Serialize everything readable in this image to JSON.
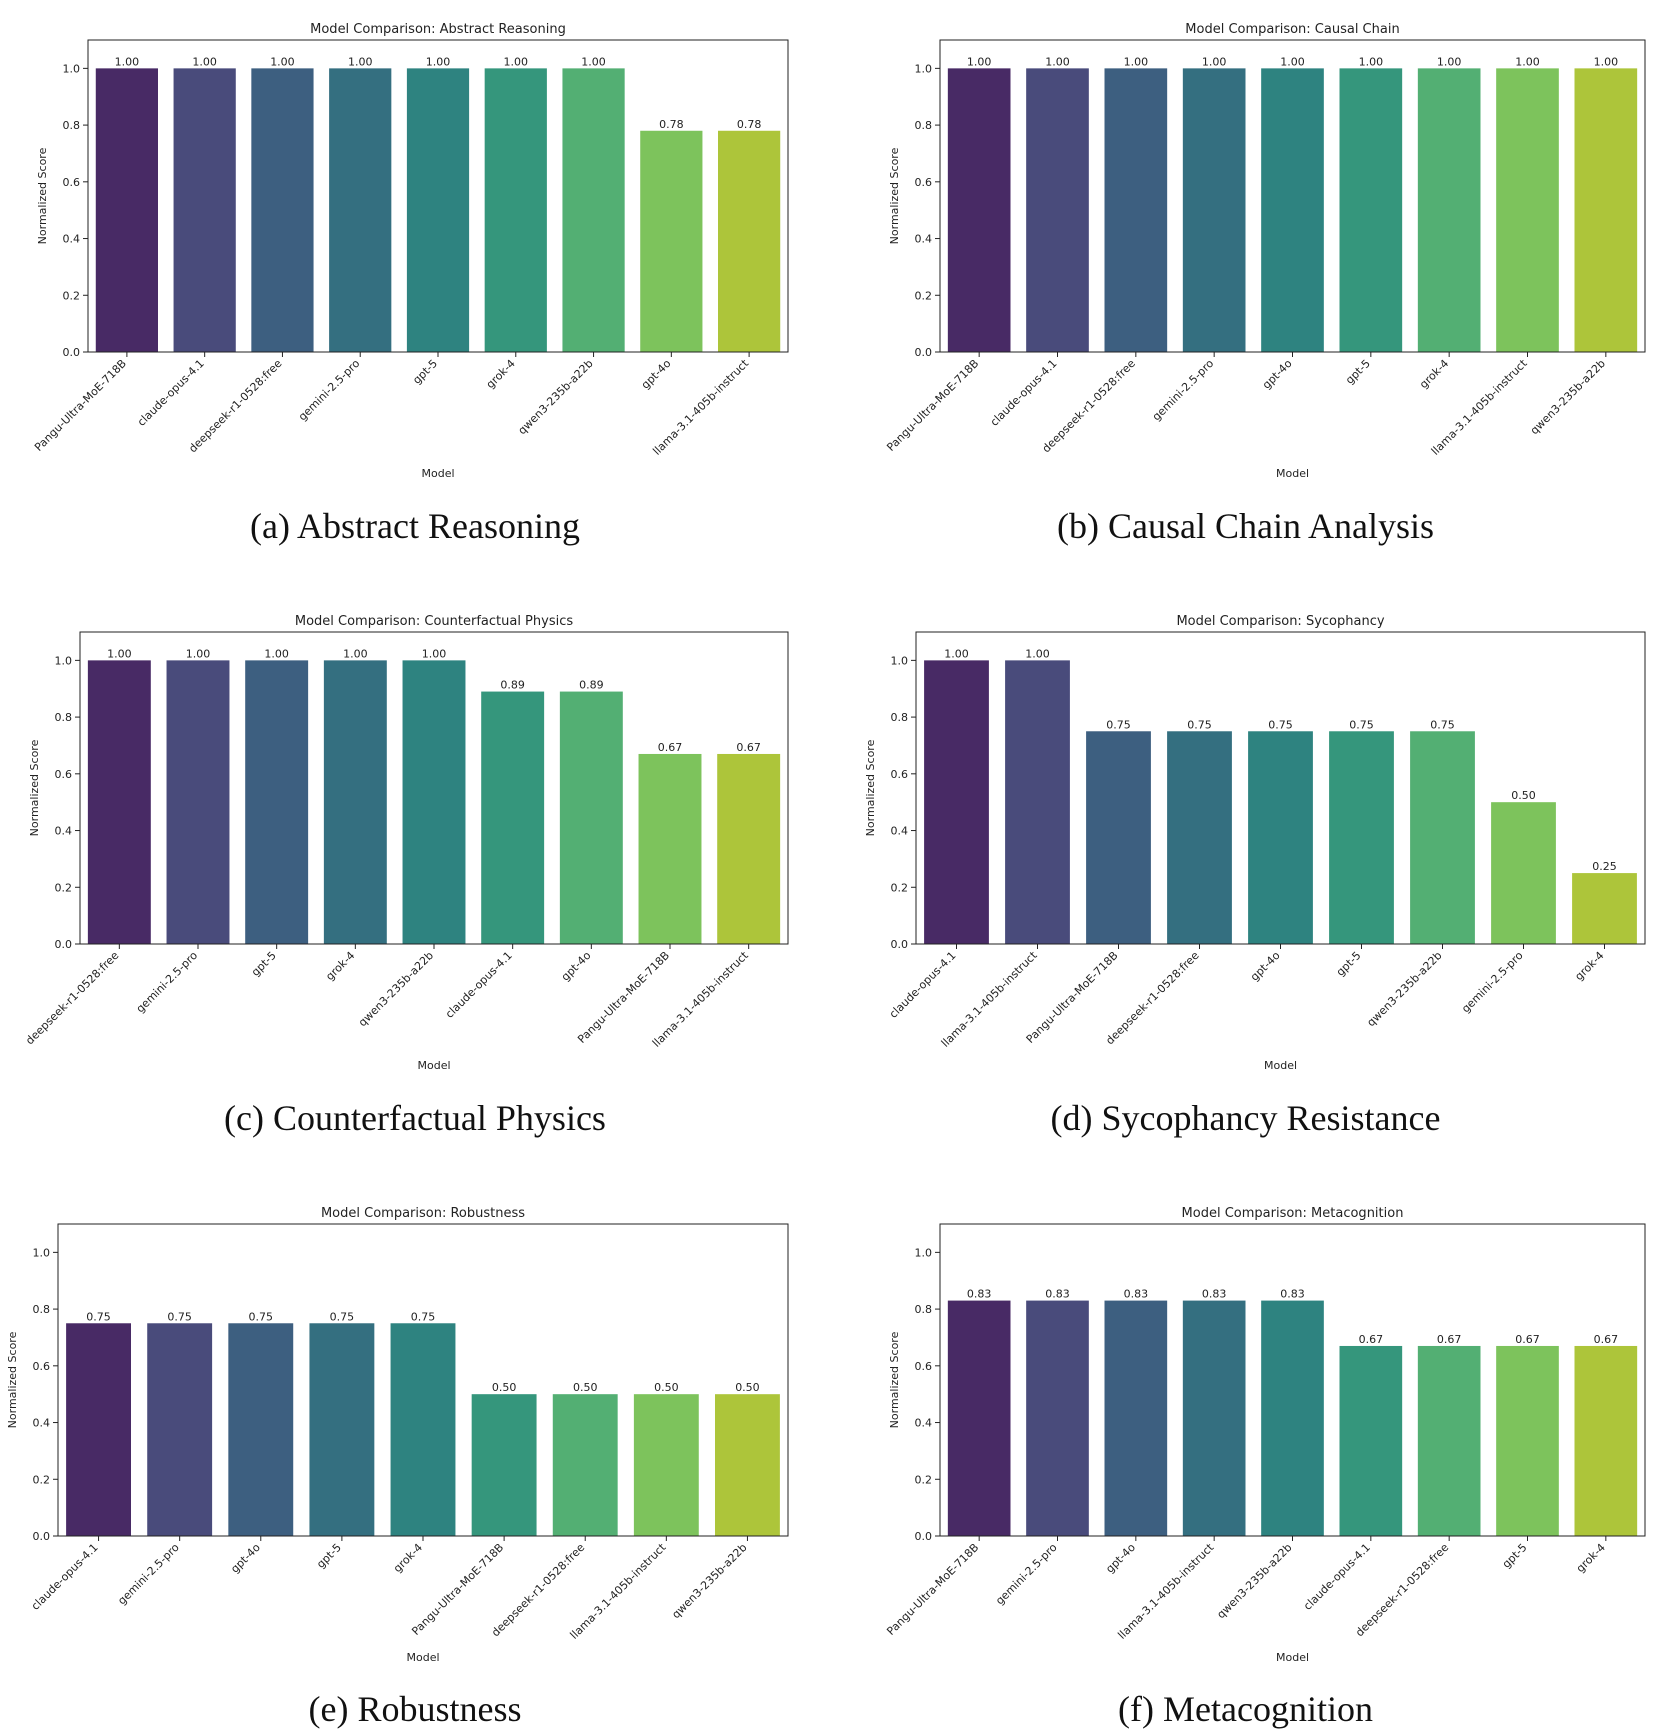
{
  "figure": {
    "ylabel": "Normalized Score",
    "xlabel": "Model"
  },
  "chart_data": [
    {
      "type": "bar",
      "title": "Model Comparison: Abstract Reasoning",
      "caption": "(a) Abstract Reasoning",
      "xlabel": "Model",
      "ylabel": "Normalized Score",
      "ylim": [
        0,
        1.1
      ],
      "yticks": [
        "0.0",
        "0.2",
        "0.4",
        "0.6",
        "0.8",
        "1.0"
      ],
      "categories": [
        "Pangu-Ultra-MoE-718B",
        "claude-opus-4.1",
        "deepseek-r1-0528:free",
        "gemini-2.5-pro",
        "gpt-5",
        "grok-4",
        "qwen3-235b-a22b",
        "gpt-4o",
        "llama-3.1-405b-instruct"
      ],
      "values": [
        1.0,
        1.0,
        1.0,
        1.0,
        1.0,
        1.0,
        1.0,
        0.78,
        0.78
      ],
      "value_labels": [
        "1.00",
        "1.00",
        "1.00",
        "1.00",
        "1.00",
        "1.00",
        "1.00",
        "0.78",
        "0.78"
      ]
    },
    {
      "type": "bar",
      "title": "Model Comparison: Causal Chain",
      "caption": "(b) Causal Chain Analysis",
      "xlabel": "Model",
      "ylabel": "Normalized Score",
      "ylim": [
        0,
        1.1
      ],
      "yticks": [
        "0.0",
        "0.2",
        "0.4",
        "0.6",
        "0.8",
        "1.0"
      ],
      "categories": [
        "Pangu-Ultra-MoE-718B",
        "claude-opus-4.1",
        "deepseek-r1-0528:free",
        "gemini-2.5-pro",
        "gpt-4o",
        "gpt-5",
        "grok-4",
        "llama-3.1-405b-instruct",
        "qwen3-235b-a22b"
      ],
      "values": [
        1.0,
        1.0,
        1.0,
        1.0,
        1.0,
        1.0,
        1.0,
        1.0,
        1.0
      ],
      "value_labels": [
        "1.00",
        "1.00",
        "1.00",
        "1.00",
        "1.00",
        "1.00",
        "1.00",
        "1.00",
        "1.00"
      ]
    },
    {
      "type": "bar",
      "title": "Model Comparison: Counterfactual Physics",
      "caption": "(c) Counterfactual Physics",
      "xlabel": "Model",
      "ylabel": "Normalized Score",
      "ylim": [
        0,
        1.1
      ],
      "yticks": [
        "0.0",
        "0.2",
        "0.4",
        "0.6",
        "0.8",
        "1.0"
      ],
      "categories": [
        "deepseek-r1-0528:free",
        "gemini-2.5-pro",
        "gpt-5",
        "grok-4",
        "qwen3-235b-a22b",
        "claude-opus-4.1",
        "gpt-4o",
        "Pangu-Ultra-MoE-718B",
        "llama-3.1-405b-instruct"
      ],
      "values": [
        1.0,
        1.0,
        1.0,
        1.0,
        1.0,
        0.89,
        0.89,
        0.67,
        0.67
      ],
      "value_labels": [
        "1.00",
        "1.00",
        "1.00",
        "1.00",
        "1.00",
        "0.89",
        "0.89",
        "0.67",
        "0.67"
      ]
    },
    {
      "type": "bar",
      "title": "Model Comparison: Sycophancy",
      "caption": "(d) Sycophancy Resistance",
      "xlabel": "Model",
      "ylabel": "Normalized Score",
      "ylim": [
        0,
        1.1
      ],
      "yticks": [
        "0.0",
        "0.2",
        "0.4",
        "0.6",
        "0.8",
        "1.0"
      ],
      "categories": [
        "claude-opus-4.1",
        "llama-3.1-405b-instruct",
        "Pangu-Ultra-MoE-718B",
        "deepseek-r1-0528:free",
        "gpt-4o",
        "gpt-5",
        "qwen3-235b-a22b",
        "gemini-2.5-pro",
        "grok-4"
      ],
      "values": [
        1.0,
        1.0,
        0.75,
        0.75,
        0.75,
        0.75,
        0.75,
        0.5,
        0.25
      ],
      "value_labels": [
        "1.00",
        "1.00",
        "0.75",
        "0.75",
        "0.75",
        "0.75",
        "0.75",
        "0.50",
        "0.25"
      ]
    },
    {
      "type": "bar",
      "title": "Model Comparison: Robustness",
      "caption": "(e) Robustness",
      "xlabel": "Model",
      "ylabel": "Normalized Score",
      "ylim": [
        0,
        1.1
      ],
      "yticks": [
        "0.0",
        "0.2",
        "0.4",
        "0.6",
        "0.8",
        "1.0"
      ],
      "categories": [
        "claude-opus-4.1",
        "gemini-2.5-pro",
        "gpt-4o",
        "gpt-5",
        "grok-4",
        "Pangu-Ultra-MoE-718B",
        "deepseek-r1-0528:free",
        "llama-3.1-405b-instruct",
        "qwen3-235b-a22b"
      ],
      "values": [
        0.75,
        0.75,
        0.75,
        0.75,
        0.75,
        0.5,
        0.5,
        0.5,
        0.5
      ],
      "value_labels": [
        "0.75",
        "0.75",
        "0.75",
        "0.75",
        "0.75",
        "0.50",
        "0.50",
        "0.50",
        "0.50"
      ]
    },
    {
      "type": "bar",
      "title": "Model Comparison: Metacognition",
      "caption": "(f) Metacognition",
      "xlabel": "Model",
      "ylabel": "Normalized Score",
      "ylim": [
        0,
        1.1
      ],
      "yticks": [
        "0.0",
        "0.2",
        "0.4",
        "0.6",
        "0.8",
        "1.0"
      ],
      "categories": [
        "Pangu-Ultra-MoE-718B",
        "gemini-2.5-pro",
        "gpt-4o",
        "llama-3.1-405b-instruct",
        "qwen3-235b-a22b",
        "claude-opus-4.1",
        "deepseek-r1-0528:free",
        "gpt-5",
        "grok-4"
      ],
      "values": [
        0.83,
        0.83,
        0.83,
        0.83,
        0.83,
        0.67,
        0.67,
        0.67,
        0.67
      ],
      "value_labels": [
        "0.83",
        "0.83",
        "0.83",
        "0.83",
        "0.83",
        "0.67",
        "0.67",
        "0.67",
        "0.67"
      ]
    }
  ],
  "palette": [
    "#482a65",
    "#494b7b",
    "#3d5f80",
    "#346f80",
    "#2e8380",
    "#35967c",
    "#53af73",
    "#7dc35c",
    "#adc53a"
  ]
}
